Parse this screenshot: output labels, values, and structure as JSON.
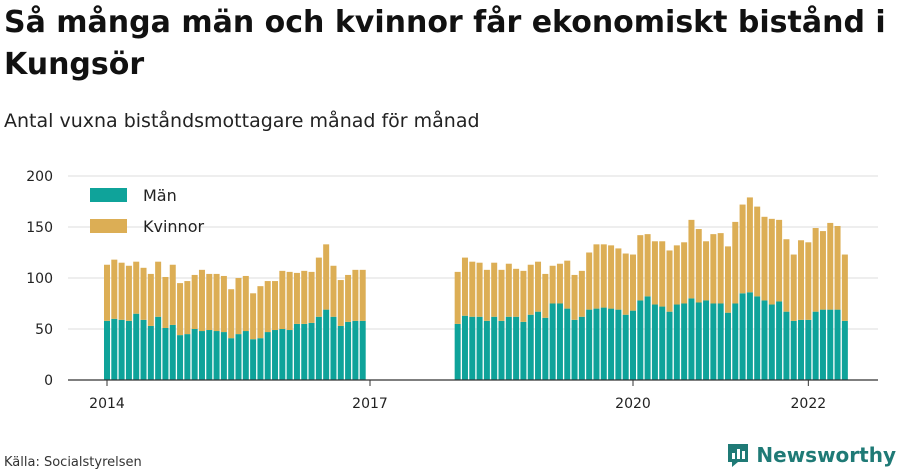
{
  "header": {
    "title": "Så många män och kvinnor får ekonomiskt bistånd i Kungsör",
    "subtitle": "Antal vuxna biståndsmottagare månad för månad"
  },
  "footer": {
    "source": "Källa: Socialstyrelsen",
    "brand": "Newsworthy",
    "brand_icon": "newsworthy-logo-icon"
  },
  "colors": {
    "men": "#0fa39a",
    "women": "#dcae55",
    "grid": "#dddddd",
    "axis": "#333333"
  },
  "chart_data": {
    "type": "bar",
    "stacked": true,
    "ylim": [
      0,
      200
    ],
    "yticks": [
      0,
      50,
      100,
      150,
      200
    ],
    "xticks": [
      {
        "label": "2014",
        "x": "2014-01"
      },
      {
        "label": "2017",
        "x": "2017-01"
      },
      {
        "label": "2020",
        "x": "2020-01"
      },
      {
        "label": "2022",
        "x": "2022-01"
      }
    ],
    "legend_position": "top-left",
    "grid": true,
    "series": [
      {
        "name": "Män",
        "segments": [
          {
            "start": "2014-01",
            "values": [
              58,
              60,
              59,
              58,
              65,
              59,
              53,
              62,
              51,
              54,
              44,
              45,
              50,
              48,
              49,
              48,
              47,
              41,
              45,
              48,
              40,
              41,
              47,
              49,
              50,
              49,
              55,
              55,
              56,
              62,
              69,
              62,
              53,
              57,
              58,
              58
            ]
          },
          {
            "start": "2018-01",
            "values": [
              55,
              63,
              62,
              62,
              58,
              62,
              58,
              62,
              62,
              57,
              64,
              67,
              61,
              75,
              75,
              70,
              59,
              62,
              69,
              70,
              71,
              70,
              69,
              64,
              68,
              78,
              82,
              74,
              72,
              67,
              74,
              75,
              80,
              76,
              78,
              75,
              75,
              66,
              75,
              85,
              86,
              82,
              78,
              74,
              77,
              67,
              58,
              59,
              59,
              67,
              69,
              69,
              69,
              58
            ]
          }
        ]
      },
      {
        "name": "Kvinnor",
        "segments": [
          {
            "start": "2014-01",
            "values": [
              55,
              58,
              56,
              54,
              51,
              51,
              51,
              54,
              50,
              59,
              51,
              52,
              53,
              60,
              55,
              56,
              55,
              48,
              55,
              54,
              45,
              51,
              50,
              48,
              57,
              57,
              50,
              52,
              50,
              58,
              64,
              50,
              45,
              46,
              50,
              50
            ]
          },
          {
            "start": "2018-01",
            "values": [
              51,
              57,
              54,
              53,
              50,
              53,
              50,
              52,
              47,
              50,
              49,
              49,
              43,
              37,
              39,
              47,
              44,
              45,
              56,
              63,
              62,
              62,
              60,
              60,
              55,
              64,
              61,
              62,
              64,
              60,
              58,
              60,
              77,
              72,
              58,
              68,
              69,
              65,
              80,
              87,
              93,
              88,
              82,
              84,
              80,
              71,
              65,
              78,
              76,
              82,
              77,
              85,
              82,
              65
            ]
          }
        ]
      }
    ]
  }
}
